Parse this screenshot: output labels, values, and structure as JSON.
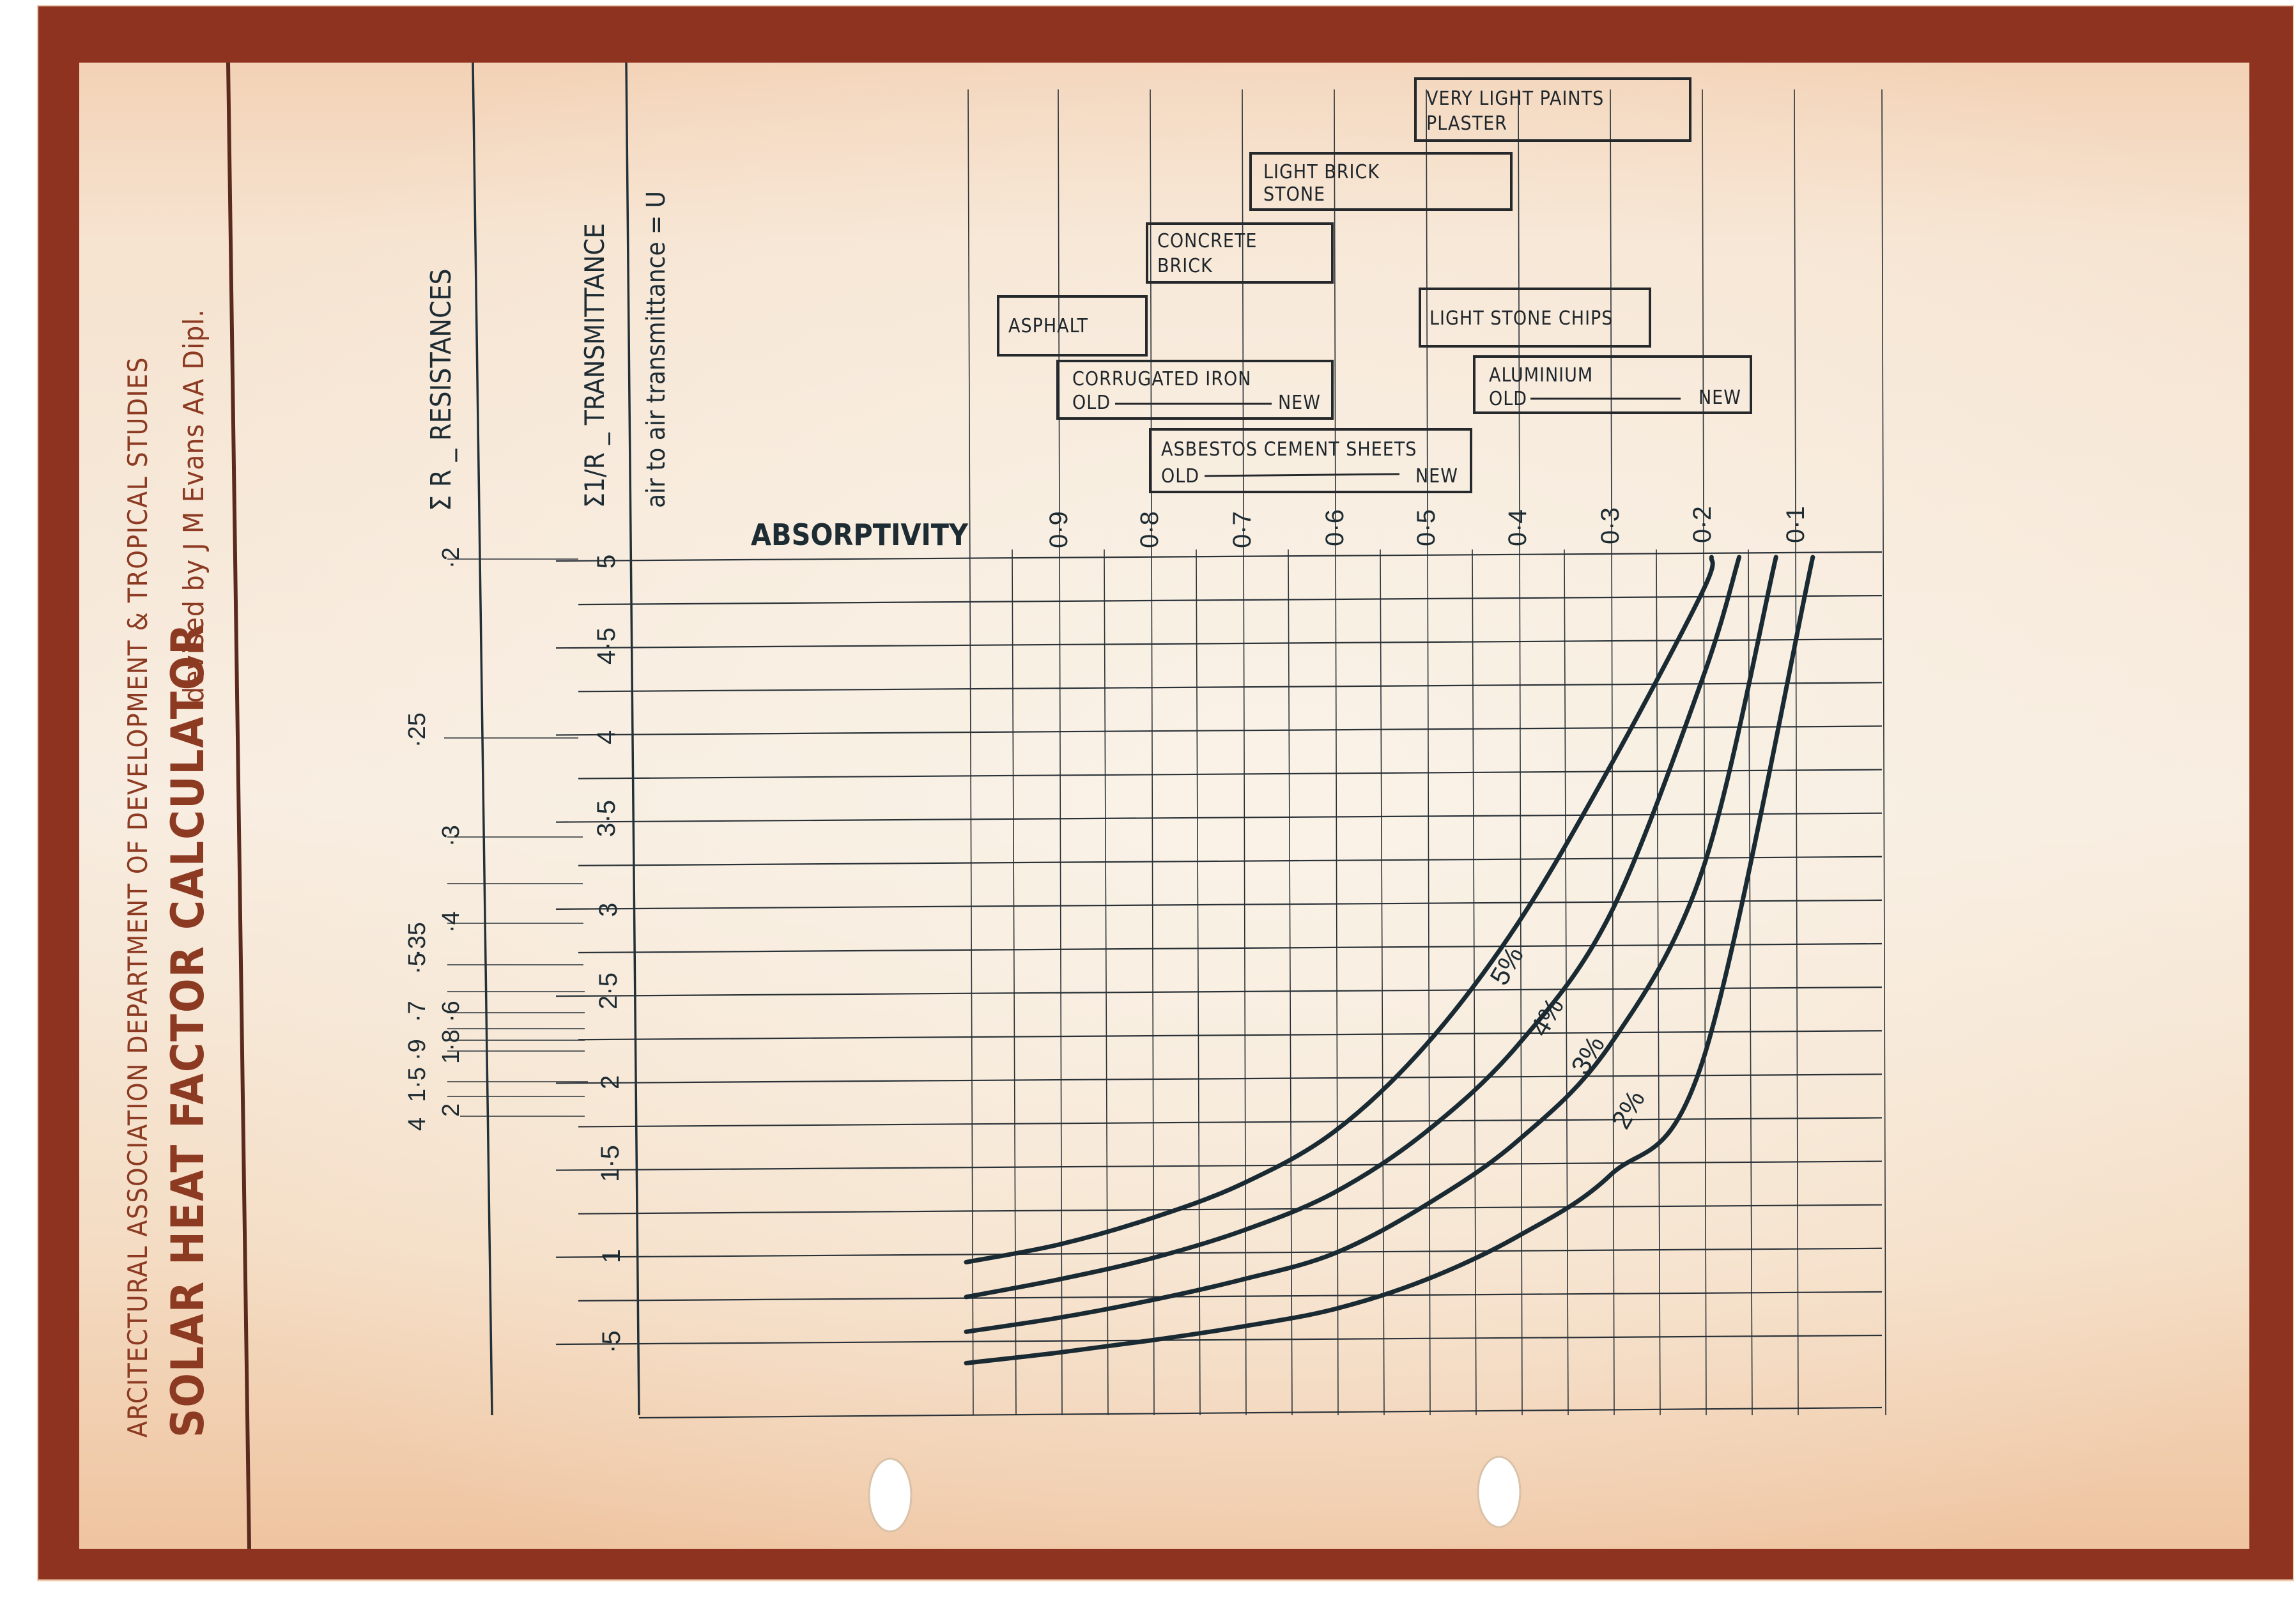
{
  "header": {
    "institution": "ARCITECTURAL ASSOCIATION  DEPARTMENT OF DEVELOPMENT & TROPICAL STUDIES",
    "title": "SOLAR HEAT FACTOR CALCULATOR",
    "author": "devised by J M Evans  AA Dipl."
  },
  "axes": {
    "resistances_label": "Σ R _ RESISTANCES",
    "transmittance_label": "Σ1/R _ TRANSMITTANCE",
    "transmittance_sublabel": "air to air transmittance = U",
    "absorptivity_label": "ABSORPTIVITY"
  },
  "materials": [
    {
      "line1": "VERY LIGHT PAINTS",
      "line2": "PLASTER"
    },
    {
      "line1": "LIGHT BRICK",
      "line2": "STONE"
    },
    {
      "line1": "CONCRETE",
      "line2": "BRICK"
    },
    {
      "line1": "ASPHALT"
    },
    {
      "line1": "LIGHT STONE CHIPS"
    },
    {
      "line1": "CORRUGATED IRON",
      "old": "OLD",
      "new": "NEW"
    },
    {
      "line1": "ALUMINIUM",
      "old": "OLD",
      "new": "NEW"
    },
    {
      "line1": "ASBESTOS  CEMENT SHEETS",
      "old": "OLD",
      "new": "NEW"
    }
  ],
  "colors": {
    "border": "#8e3320",
    "paper": "#f6ead9",
    "ink": "#1d2b33",
    "title_ink": "#8c3a22"
  },
  "chart_data": {
    "type": "line",
    "title": "SOLAR HEAT FACTOR CALCULATOR",
    "xlabel": "ABSORPTIVITY",
    "ylabel": "Σ1/R _ TRANSMITTANCE (air to air transmittance = U)",
    "secondary_ylabel": "Σ R _ RESISTANCES",
    "x_ticks": [
      "0·9",
      "0·8",
      "0·7",
      "0·6",
      "0·5",
      "0·4",
      "0·3",
      "0·2",
      "0·1"
    ],
    "x_tick_values": [
      0.9,
      0.8,
      0.7,
      0.6,
      0.5,
      0.4,
      0.3,
      0.2,
      0.1
    ],
    "xlim": [
      1.0,
      0.0
    ],
    "u_ticks": [
      "5",
      "4·5",
      "4",
      "3·5",
      "3",
      "2·5",
      "2",
      "1·5",
      "1",
      "·5"
    ],
    "u_tick_values": [
      5,
      4.5,
      4,
      3.5,
      3,
      2.5,
      2,
      1.5,
      1,
      0.5
    ],
    "ylim": [
      0,
      5
    ],
    "r_ticks": [
      "·2",
      "·25",
      "·3",
      "·35",
      "·4",
      "·5",
      "·6",
      "·7",
      "·8",
      "·9",
      "1",
      "1·5",
      "2",
      "4"
    ],
    "r_tick_values": [
      0.2,
      0.25,
      0.3,
      0.35,
      0.4,
      0.5,
      0.6,
      0.7,
      0.8,
      0.9,
      1,
      1.5,
      2,
      4
    ],
    "grid": true,
    "series": [
      {
        "name": "5%",
        "x": [
          1.0,
          0.9,
          0.8,
          0.7,
          0.6,
          0.5,
          0.4,
          0.3,
          0.2,
          0.19
        ],
        "y": [
          0.95,
          1.05,
          1.2,
          1.4,
          1.7,
          2.2,
          2.9,
          3.8,
          4.8,
          5.0
        ]
      },
      {
        "name": "4%",
        "x": [
          1.0,
          0.9,
          0.8,
          0.7,
          0.6,
          0.5,
          0.4,
          0.3,
          0.2,
          0.16
        ],
        "y": [
          0.75,
          0.85,
          0.97,
          1.13,
          1.35,
          1.7,
          2.2,
          2.95,
          4.3,
          5.0
        ]
      },
      {
        "name": "3%",
        "x": [
          1.0,
          0.9,
          0.8,
          0.7,
          0.6,
          0.5,
          0.4,
          0.3,
          0.2,
          0.12
        ],
        "y": [
          0.55,
          0.63,
          0.73,
          0.85,
          1.0,
          1.28,
          1.65,
          2.2,
          3.2,
          5.0
        ]
      },
      {
        "name": "2%",
        "x": [
          1.0,
          0.9,
          0.8,
          0.7,
          0.6,
          0.5,
          0.4,
          0.3,
          0.2,
          0.08
        ],
        "y": [
          0.37,
          0.43,
          0.5,
          0.58,
          0.68,
          0.85,
          1.1,
          1.45,
          2.1,
          5.0
        ]
      }
    ]
  }
}
